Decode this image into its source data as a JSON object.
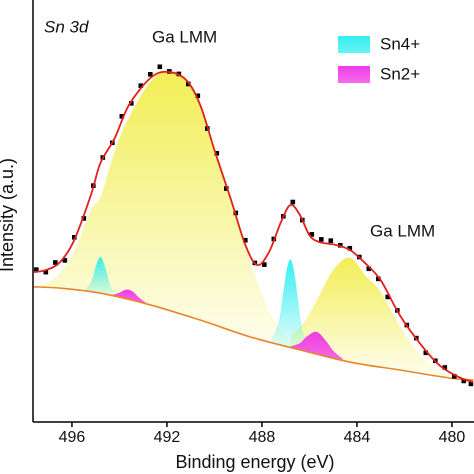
{
  "chart_data": {
    "type": "xps",
    "x_label": "Binding energy (eV)",
    "y_label": "Intensity (a.u.)",
    "annotations": [
      "Sn 3d",
      "Ga LMM",
      "Ga LMM"
    ],
    "xlim": [
      497.64,
      479.07
    ],
    "xticks": [
      496,
      492,
      488,
      484,
      480
    ],
    "ylim": [
      0,
      100
    ],
    "series": [
      {
        "name": "Sn4+",
        "color": "#35eef0",
        "peaks": [
          {
            "x": [
              495.5,
              495.2,
              495.0,
              494.8,
              494.6,
              494.4,
              494.2
            ],
            "values": [
              30.7,
              32.8,
              36.5,
              38.8,
              36.3,
              32.3,
              30.2
            ]
          },
          {
            "x": [
              487.6,
              487.3,
              487.1,
              486.95,
              486.8,
              486.65,
              486.5,
              486.3,
              486.0
            ],
            "values": [
              19.1,
              23.2,
              30.4,
              35.9,
              38.2,
              35.5,
              29.5,
              21.7,
              16.7
            ]
          }
        ]
      },
      {
        "name": "Sn2+",
        "color": "#f03ce6",
        "peaks": [
          {
            "x": [
              494.3,
              494.0,
              493.8,
              493.6,
              493.4,
              493.2,
              492.9
            ],
            "values": [
              29.8,
              30.3,
              30.9,
              31.0,
              30.4,
              29.3,
              28.0
            ]
          },
          {
            "x": [
              486.8,
              486.4,
              486.1,
              485.7,
              485.3,
              485.0,
              484.6
            ],
            "values": [
              17.5,
              18.3,
              19.9,
              21.0,
              18.8,
              16.5,
              14.6
            ]
          }
        ]
      }
    ],
    "components": [
      {
        "color": "#f2ee55",
        "x": [
          497.6,
          497.1,
          496.5,
          495.9,
          495.2,
          494.8,
          494.2,
          493.6,
          492.7,
          492.0,
          491.2,
          490.6,
          490.0,
          489.3,
          488.7,
          488.2,
          487.7,
          487.2,
          486.8,
          486.4
        ],
        "values": [
          31.9,
          32.5,
          35,
          40,
          50,
          53,
          64,
          72,
          80.5,
          82.9,
          80.8,
          75,
          64,
          52,
          41,
          33,
          26,
          21.5,
          18.6,
          17
        ]
      },
      {
        "color": "#f2ee55",
        "x": [
          486.8,
          486.2,
          485.6,
          485.0,
          484.3,
          483.6,
          483.0,
          482.2,
          481.4,
          480.6,
          479.8
        ],
        "values": [
          20,
          23.5,
          29.4,
          35.7,
          38.6,
          34.1,
          30.5,
          22.4,
          15.9,
          12.1,
          10.3
        ]
      }
    ],
    "background": {
      "color": "#e8862a",
      "x": [
        497.6,
        496.5,
        494.8,
        492.7,
        490.6,
        488.5,
        486.4,
        484.3,
        482.2,
        480.1,
        479.1
      ],
      "values": [
        31.7,
        31.4,
        30.2,
        27.4,
        23.8,
        19.8,
        16.7,
        13.8,
        11.9,
        10,
        9.5
      ]
    },
    "envelope": {
      "color": "#e0201c",
      "x": [
        497.6,
        497.1,
        496.5,
        495.9,
        495.2,
        494.8,
        494.2,
        493.6,
        492.7,
        492.0,
        491.2,
        490.6,
        490.0,
        489.3,
        488.7,
        488.2,
        487.7,
        487.2,
        486.8,
        486.4,
        486.0,
        485.6,
        484.9,
        484.3,
        483.7,
        483.0,
        482.2,
        481.3,
        480.5,
        479.7,
        479.1
      ],
      "values": [
        35.2,
        35.7,
        37.6,
        42.9,
        53.6,
        61.2,
        67.1,
        75,
        81.4,
        82.9,
        81,
        75,
        64.3,
        52.4,
        41.7,
        36.9,
        40,
        47.1,
        51.2,
        48.8,
        44,
        42.4,
        41.7,
        40.5,
        37.6,
        33.3,
        25,
        17.9,
        12.9,
        10.2,
        9
      ]
    },
    "points": {
      "color": "#000000",
      "x": [
        497.5,
        497.1,
        496.7,
        496.3,
        495.9,
        495.5,
        495.1,
        494.7,
        494.3,
        493.9,
        493.5,
        493.1,
        492.7,
        492.3,
        491.9,
        491.5,
        491.1,
        490.7,
        490.3,
        489.9,
        489.5,
        489.1,
        488.7,
        488.3,
        487.9,
        487.5,
        487.1,
        486.7,
        486.3,
        485.9,
        485.5,
        485.1,
        484.7,
        484.3,
        483.9,
        483.5,
        483.1,
        482.7,
        482.3,
        481.9,
        481.5,
        481.1,
        480.7,
        480.3,
        479.9,
        479.5,
        479.2
      ],
      "values": [
        35.8,
        35.2,
        37.5,
        38.0,
        43.5,
        48.0,
        55.8,
        62.5,
        66.0,
        72.3,
        75.4,
        79.6,
        82.3,
        84.1,
        83.0,
        82.4,
        80.0,
        77.2,
        69.4,
        63.5,
        55.1,
        49.3,
        42.8,
        37.4,
        37.0,
        43.1,
        48.5,
        51.9,
        47.6,
        44.2,
        43.0,
        42.7,
        41.6,
        40.9,
        38.8,
        36.0,
        33.6,
        29.3,
        26.1,
        22.6,
        19.5,
        16.0,
        14.1,
        12.5,
        10.4,
        9.3,
        8.6
      ]
    }
  }
}
